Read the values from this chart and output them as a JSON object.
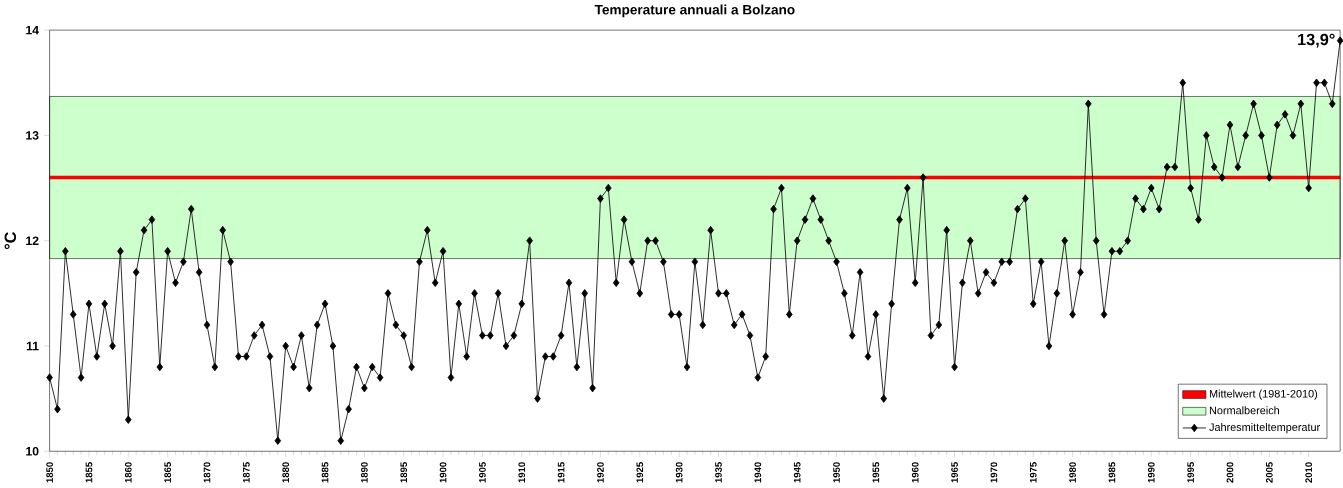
{
  "chart_data": {
    "type": "line",
    "title": "Temperature annuali a Bolzano",
    "ylabel": "°C",
    "x": [
      1850,
      1851,
      1852,
      1853,
      1854,
      1855,
      1856,
      1857,
      1858,
      1859,
      1860,
      1861,
      1862,
      1863,
      1864,
      1865,
      1866,
      1867,
      1868,
      1869,
      1870,
      1871,
      1872,
      1873,
      1874,
      1875,
      1876,
      1877,
      1878,
      1879,
      1880,
      1881,
      1882,
      1883,
      1884,
      1885,
      1886,
      1887,
      1888,
      1889,
      1890,
      1891,
      1892,
      1893,
      1894,
      1895,
      1896,
      1897,
      1898,
      1899,
      1900,
      1901,
      1902,
      1903,
      1904,
      1905,
      1906,
      1907,
      1908,
      1909,
      1910,
      1911,
      1912,
      1913,
      1914,
      1915,
      1916,
      1917,
      1918,
      1919,
      1920,
      1921,
      1922,
      1923,
      1924,
      1925,
      1926,
      1927,
      1928,
      1929,
      1930,
      1931,
      1932,
      1933,
      1934,
      1935,
      1936,
      1937,
      1938,
      1939,
      1940,
      1941,
      1942,
      1943,
      1944,
      1945,
      1946,
      1947,
      1948,
      1949,
      1950,
      1951,
      1952,
      1953,
      1954,
      1955,
      1956,
      1957,
      1958,
      1959,
      1960,
      1961,
      1962,
      1963,
      1964,
      1965,
      1966,
      1967,
      1968,
      1969,
      1970,
      1971,
      1972,
      1973,
      1974,
      1975,
      1976,
      1977,
      1978,
      1979,
      1980,
      1981,
      1982,
      1983,
      1984,
      1985,
      1986,
      1987,
      1988,
      1989,
      1990,
      1991,
      1992,
      1993,
      1994,
      1995,
      1996,
      1997,
      1998,
      1999,
      2000,
      2001,
      2002,
      2003,
      2004,
      2005,
      2006,
      2007,
      2008,
      2009,
      2010,
      2011,
      2012,
      2013,
      2014
    ],
    "series": [
      {
        "name": "Jahresmitteltemperatur",
        "color": "#000000",
        "values": [
          10.7,
          10.4,
          11.9,
          11.3,
          10.7,
          11.4,
          10.9,
          11.4,
          11.0,
          11.9,
          10.3,
          11.7,
          12.1,
          12.2,
          10.8,
          11.9,
          11.6,
          11.8,
          12.3,
          11.7,
          11.2,
          10.8,
          12.1,
          11.8,
          10.9,
          10.9,
          11.1,
          11.2,
          10.9,
          10.1,
          11.0,
          10.8,
          11.1,
          10.6,
          11.2,
          11.4,
          11.0,
          10.1,
          10.4,
          10.8,
          10.6,
          10.8,
          10.7,
          11.5,
          11.2,
          11.1,
          10.8,
          11.8,
          12.1,
          11.6,
          11.9,
          10.7,
          11.4,
          10.9,
          11.5,
          11.1,
          11.1,
          11.5,
          11.0,
          11.1,
          11.4,
          12.0,
          10.5,
          10.9,
          10.9,
          11.1,
          11.6,
          10.8,
          11.5,
          10.6,
          12.4,
          12.5,
          11.6,
          12.2,
          11.8,
          11.5,
          12.0,
          12.0,
          11.8,
          11.3,
          11.3,
          10.8,
          11.8,
          11.2,
          12.1,
          11.5,
          11.5,
          11.2,
          11.3,
          11.1,
          10.7,
          10.9,
          12.3,
          12.5,
          11.3,
          12.0,
          12.2,
          12.4,
          12.2,
          12.0,
          11.8,
          11.5,
          11.1,
          11.7,
          10.9,
          11.3,
          10.5,
          11.4,
          12.2,
          12.5,
          11.6,
          12.6,
          11.1,
          11.2,
          12.1,
          10.8,
          11.6,
          12.0,
          11.5,
          11.7,
          11.6,
          11.8,
          11.8,
          12.3,
          12.4,
          11.4,
          11.8,
          11.0,
          11.5,
          12.0,
          11.3,
          11.7,
          13.3,
          12.0,
          11.3,
          11.9,
          11.9,
          12.0,
          12.4,
          12.3,
          12.5,
          12.3,
          12.7,
          12.7,
          13.5,
          12.5,
          12.2,
          13.0,
          12.7,
          12.6,
          13.1,
          12.7,
          13.0,
          13.3,
          13.0,
          12.6,
          13.1,
          13.2,
          13.0,
          13.3,
          12.5,
          13.5,
          13.5,
          13.3,
          13.9
        ]
      }
    ],
    "xlim": [
      1850,
      2014
    ],
    "ylim": [
      10,
      14
    ],
    "xticks": [
      1850,
      1855,
      1860,
      1865,
      1870,
      1875,
      1880,
      1885,
      1890,
      1895,
      1900,
      1905,
      1910,
      1915,
      1920,
      1925,
      1930,
      1935,
      1940,
      1945,
      1950,
      1955,
      1960,
      1965,
      1970,
      1975,
      1980,
      1985,
      1990,
      1995,
      2000,
      2005,
      2010
    ],
    "yticks": [
      10,
      11,
      12,
      13,
      14
    ],
    "ref_lines": [
      {
        "axis": "y",
        "value": 12.6,
        "label": "Mittelwert (1981-2010)",
        "color": "#ff0000"
      }
    ],
    "bands": [
      {
        "axis": "y",
        "from": 11.83,
        "to": 13.37,
        "label": "Normalbereich",
        "color": "#ccffcc"
      }
    ],
    "annotations": [
      {
        "text": "13,9°",
        "x": 2014,
        "y": 13.9
      }
    ],
    "legend": "bottom right",
    "marker": "diamond"
  }
}
